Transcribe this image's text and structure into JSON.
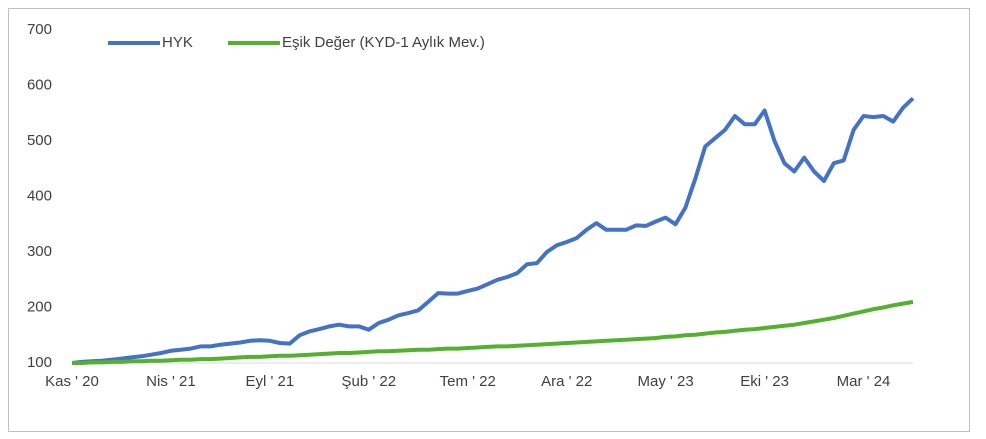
{
  "chart_data": {
    "type": "line",
    "categories": [
      "Kas ' 20",
      null,
      null,
      null,
      null,
      null,
      null,
      null,
      null,
      null,
      "Nis ' 21",
      null,
      null,
      null,
      null,
      null,
      null,
      null,
      null,
      null,
      "Eyl ' 21",
      null,
      null,
      null,
      null,
      null,
      null,
      null,
      null,
      null,
      "Şub ' 22",
      null,
      null,
      null,
      null,
      null,
      null,
      null,
      null,
      null,
      "Tem ' 22",
      null,
      null,
      null,
      null,
      null,
      null,
      null,
      null,
      null,
      "Ara ' 22",
      null,
      null,
      null,
      null,
      null,
      null,
      null,
      null,
      null,
      "May ' 23",
      null,
      null,
      null,
      null,
      null,
      null,
      null,
      null,
      null,
      "Eki ' 23",
      null,
      null,
      null,
      null,
      null,
      null,
      null,
      null,
      null,
      "Mar ' 24",
      null,
      null,
      null,
      null,
      null
    ],
    "series": [
      {
        "name": "HYK",
        "color": "#4472c4",
        "values": [
          100,
          102,
          103,
          104,
          106,
          108,
          110,
          112,
          115,
          118,
          122,
          124,
          126,
          130,
          130,
          133,
          135,
          137,
          140,
          141,
          140,
          136,
          135,
          150,
          157,
          161,
          166,
          169,
          166,
          166,
          160,
          172,
          178,
          186,
          190,
          195,
          210,
          226,
          225,
          225,
          230,
          234,
          242,
          250,
          255,
          262,
          278,
          280,
          300,
          312,
          318,
          325,
          340,
          352,
          340,
          340,
          340,
          348,
          347,
          355,
          362,
          350,
          380,
          432,
          490,
          505,
          520,
          545,
          530,
          530,
          555,
          500,
          460,
          445,
          470,
          445,
          428,
          460,
          465,
          520,
          545,
          543,
          545,
          535,
          560,
          577
        ]
      },
      {
        "name": "Eşik Değer (KYD-1 Aylık Mev.)",
        "color": "#56b030",
        "values": [
          100,
          100,
          101,
          101,
          102,
          102,
          103,
          103,
          104,
          104,
          105,
          106,
          106,
          107,
          107,
          108,
          109,
          110,
          111,
          111,
          112,
          113,
          113,
          114,
          115,
          116,
          117,
          118,
          118,
          119,
          120,
          121,
          121,
          122,
          123,
          124,
          124,
          125,
          126,
          126,
          127,
          128,
          129,
          130,
          130,
          131,
          132,
          133,
          134,
          135,
          136,
          137,
          138,
          139,
          140,
          141,
          142,
          143,
          144,
          145,
          147,
          148,
          150,
          151,
          153,
          155,
          156,
          158,
          160,
          161,
          163,
          165,
          167,
          169,
          172,
          175,
          178,
          181,
          185,
          189,
          193,
          197,
          200,
          204,
          207,
          210
        ]
      }
    ],
    "ylim": [
      100,
      700
    ],
    "yticks": [
      100,
      200,
      300,
      400,
      500,
      600,
      700
    ],
    "grid": false,
    "legend": "top-left"
  }
}
